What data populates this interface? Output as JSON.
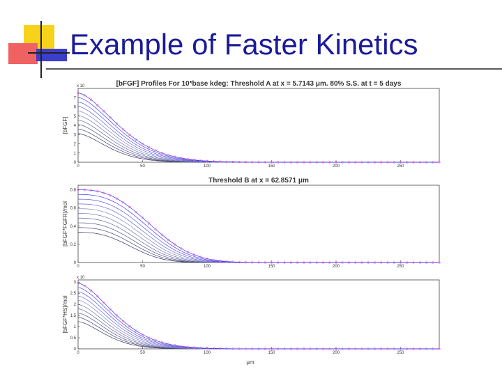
{
  "slide": {
    "title": "Example of Faster Kinetics",
    "colors": {
      "title": "#1a1a99",
      "logo_yellow": "#f7d21b",
      "logo_red": "#f06262",
      "logo_blue": "#3d3dcc"
    }
  },
  "chart_data": [
    {
      "type": "line",
      "title": "[bFGF] Profiles For 10*base kdeg: Threshold A at x = 5.7143 μm. 80% S.S. at t = 5 days",
      "xlabel": "",
      "ylabel": "[bFGF]",
      "y_exponent": "x 10",
      "xlim": [
        0,
        280
      ],
      "ylim": [
        0,
        8
      ],
      "x_ticks": [
        0,
        50,
        100,
        150,
        200,
        250
      ],
      "y_ticks": [
        0,
        1,
        2,
        3,
        4,
        5,
        6,
        7
      ],
      "curve_scale": 7.5,
      "curve_decay": 35,
      "curve_power": 1.6,
      "marker_color": "#ff66cc",
      "grid": false,
      "series_count": 10
    },
    {
      "type": "line",
      "title": "Threshold B at x = 62.8571 μm",
      "xlabel": "",
      "ylabel": "[bFGF*FGFR]/mol",
      "xlim": [
        0,
        280
      ],
      "ylim": [
        0,
        0.85
      ],
      "x_ticks": [
        0,
        50,
        100,
        150,
        200,
        250
      ],
      "y_ticks": [
        0,
        0.2,
        0.4,
        0.6,
        0.8
      ],
      "curve_scale": 0.8,
      "curve_decay": 55,
      "curve_power": 2.6,
      "marker_color": "#ff66cc",
      "grid": false,
      "series_count": 10
    },
    {
      "type": "line",
      "title": "",
      "xlabel": "μm",
      "ylabel": "[bFGF*HS]/mol",
      "y_exponent": "x 10",
      "xlim": [
        0,
        280
      ],
      "ylim": [
        0,
        3.1
      ],
      "x_ticks": [
        0,
        50,
        100,
        150,
        200,
        250
      ],
      "y_ticks": [
        0,
        0.5,
        1,
        1.5,
        2,
        2.5,
        3
      ],
      "curve_scale": 2.95,
      "curve_decay": 32,
      "curve_power": 1.6,
      "marker_color": "#ff66cc",
      "grid": false,
      "series_count": 10
    }
  ]
}
